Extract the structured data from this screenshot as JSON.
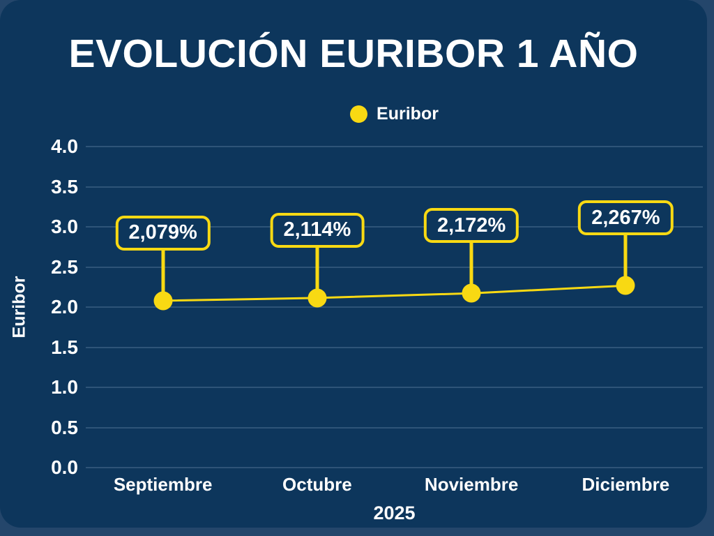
{
  "page": {
    "title": "EVOLUCIÓN EURIBOR 1 AÑO"
  },
  "legend": {
    "label": "Euribor"
  },
  "chart_data": {
    "type": "line",
    "title": "EVOLUCIÓN EURIBOR 1 AÑO",
    "x": [
      "Septiembre",
      "Octubre",
      "Noviembre",
      "Diciembre"
    ],
    "xlabel": "2025",
    "ylabel": "Euribor",
    "series": [
      {
        "name": "Euribor",
        "values": [
          2.079,
          2.114,
          2.172,
          2.267
        ],
        "labels": [
          "2,079%",
          "2,114%",
          "2,172%",
          "2,267%"
        ],
        "color": "#F8D913",
        "marker": "circle"
      }
    ],
    "ylim": [
      0.0,
      4.0
    ],
    "ytick_step": 0.5,
    "ytick_labels": [
      "4.0",
      "3.5",
      "3.0",
      "2.5",
      "2.0",
      "1.5",
      "1.0",
      "0.5",
      "0.0"
    ],
    "grid": true,
    "legend_position": "top-center"
  },
  "colors": {
    "background_outer": "#24466B",
    "card": "#0D365C",
    "gridline": "#2E5478",
    "accent_yellow": "#F8D913",
    "text": "#FFFFFF"
  }
}
